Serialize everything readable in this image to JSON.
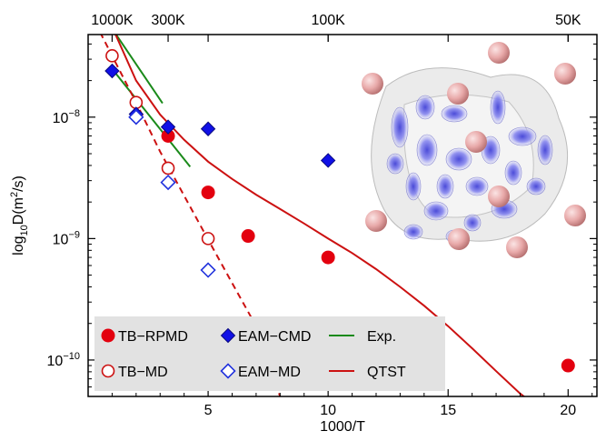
{
  "chart_data": {
    "type": "scatter",
    "xlabel": "1000/T",
    "ylabel": "log",
    "ylabel_sub": "10",
    "ylabel_rest": "D(m",
    "ylabel_sup": "2",
    "ylabel_end": "/s)",
    "xlim": [
      0.0,
      21.2
    ],
    "ylim_log10": [
      -10.3,
      -7.32
    ],
    "y_scale": "log",
    "x_ticks": [
      5,
      10,
      15,
      20
    ],
    "x_tick_labels": [
      "5",
      "10",
      "15",
      "20"
    ],
    "y_ticks_log10": [
      -10,
      -9,
      -8
    ],
    "y_tick_bases": [
      "10",
      "10",
      "10"
    ],
    "y_tick_exponents": [
      "−10",
      "−9",
      "−8"
    ],
    "top_axis_ticks_x": [
      1.0,
      3.333,
      10.0,
      20.0
    ],
    "top_axis_labels": [
      "1000K",
      "300K",
      "100K",
      "50K"
    ],
    "legend": {
      "placement": "bottom-left",
      "entries": [
        {
          "label": "TB−RPMD",
          "marker": "filled-circle",
          "color": "#e3000f"
        },
        {
          "label": "EAM−CMD",
          "marker": "filled-diamond",
          "color": "#1010e6"
        },
        {
          "label": "Exp.",
          "marker": "line",
          "color": "#1a8a1a"
        },
        {
          "label": "TB−MD",
          "marker": "open-circle",
          "color": "#cc1111"
        },
        {
          "label": "EAM−MD",
          "marker": "open-diamond",
          "color": "#2233dd"
        },
        {
          "label": "QTST",
          "marker": "line",
          "color": "#cc1111"
        }
      ]
    },
    "series": [
      {
        "name": "TB−RPMD",
        "marker": "filled-circle",
        "color": "#e3000f",
        "x": [
          3.333,
          5.0,
          6.667,
          10.0,
          20.0
        ],
        "y": [
          7e-09,
          2.4e-09,
          1.05e-09,
          7e-10,
          9e-11
        ]
      },
      {
        "name": "TB−MD",
        "marker": "open-circle",
        "color": "#cc1111",
        "x": [
          1.0,
          2.0,
          3.333,
          5.0
        ],
        "y": [
          3.2e-08,
          1.32e-08,
          3.8e-09,
          1e-09
        ]
      },
      {
        "name": "EAM−CMD",
        "marker": "filled-diamond",
        "color": "#1010e6",
        "x": [
          1.0,
          2.0,
          3.333,
          5.0,
          10.0
        ],
        "y": [
          2.4e-08,
          1.06e-08,
          8.3e-09,
          8e-09,
          4.4e-09
        ]
      },
      {
        "name": "EAM−MD",
        "marker": "open-diamond",
        "color": "#2233dd",
        "x": [
          2.0,
          3.333,
          5.0
        ],
        "y": [
          1e-08,
          2.9e-09,
          5.5e-10
        ]
      },
      {
        "name": "Exp.",
        "marker": "line",
        "color": "#1a8a1a",
        "segments": [
          {
            "x": [
              1.1,
              3.1
            ],
            "y": [
              5e-08,
              1.3e-08
            ]
          },
          {
            "x": [
              1.0,
              4.25
            ],
            "y": [
              2.5e-08,
              3.9e-09
            ]
          }
        ]
      },
      {
        "name": "QTST",
        "marker": "line",
        "color": "#cc1111",
        "style": "solid",
        "x": [
          1.1,
          2.0,
          3.0,
          4.0,
          5.0,
          6.0,
          7.0,
          8.0,
          9.0,
          10.0,
          11.0,
          12.0,
          13.0,
          14.0,
          15.0,
          16.0,
          17.0,
          18.0,
          18.8
        ],
        "y": [
          5e-08,
          2e-08,
          1.05e-08,
          6.5e-09,
          4.3e-09,
          3.1e-09,
          2.3e-09,
          1.75e-09,
          1.33e-09,
          1e-09,
          7.6e-10,
          5.6e-10,
          4e-10,
          2.8e-10,
          1.9e-10,
          1.25e-10,
          8.1e-11,
          5.3e-11,
          4e-11
        ]
      },
      {
        "name": "",
        "marker": "line",
        "color": "#cc1111",
        "style": "dashed",
        "x": [
          0.5,
          1.0,
          2.0,
          3.0,
          4.0,
          5.0,
          6.0,
          7.0,
          8.0
        ],
        "y": [
          5e-08,
          3.2e-08,
          1.32e-08,
          5.2e-09,
          2.25e-09,
          9.8e-10,
          4.3e-10,
          1.9e-10,
          5e-11
        ]
      }
    ],
    "inset_image": "sphere-lattice-structure"
  }
}
